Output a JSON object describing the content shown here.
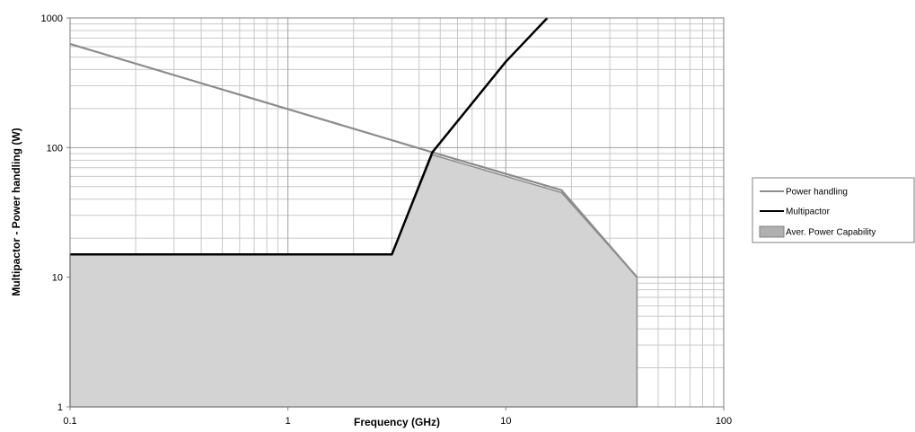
{
  "chart_data": {
    "type": "line",
    "xscale": "log",
    "yscale": "log",
    "xlim": [
      0.1,
      100
    ],
    "ylim": [
      1,
      1000
    ],
    "grid": true,
    "legend_position": "right",
    "xlabel": "Frequency (GHz)",
    "ylabel": "Multipactor - Power handling (W)",
    "x_ticks": [
      "0.1",
      "1",
      "10",
      "100"
    ],
    "y_ticks": [
      "1",
      "10",
      "100",
      "1000"
    ],
    "series": [
      {
        "name": "Power handling",
        "kind": "line",
        "color": "#8c8c8c",
        "x": [
          0.1,
          4.6,
          18,
          40
        ],
        "y": [
          630,
          92,
          47,
          10
        ]
      },
      {
        "name": "Multipactor",
        "kind": "line",
        "color": "#000000",
        "x": [
          0.1,
          3,
          4.6,
          10,
          15.5
        ],
        "y": [
          15,
          15,
          92,
          460,
          1000
        ]
      },
      {
        "name": "Aver. Power Capability",
        "kind": "area",
        "color": "#d3d3d3",
        "x": [
          0.1,
          3,
          4.6,
          18,
          40,
          40
        ],
        "y": [
          15,
          15,
          88,
          45,
          10,
          1
        ]
      }
    ]
  }
}
